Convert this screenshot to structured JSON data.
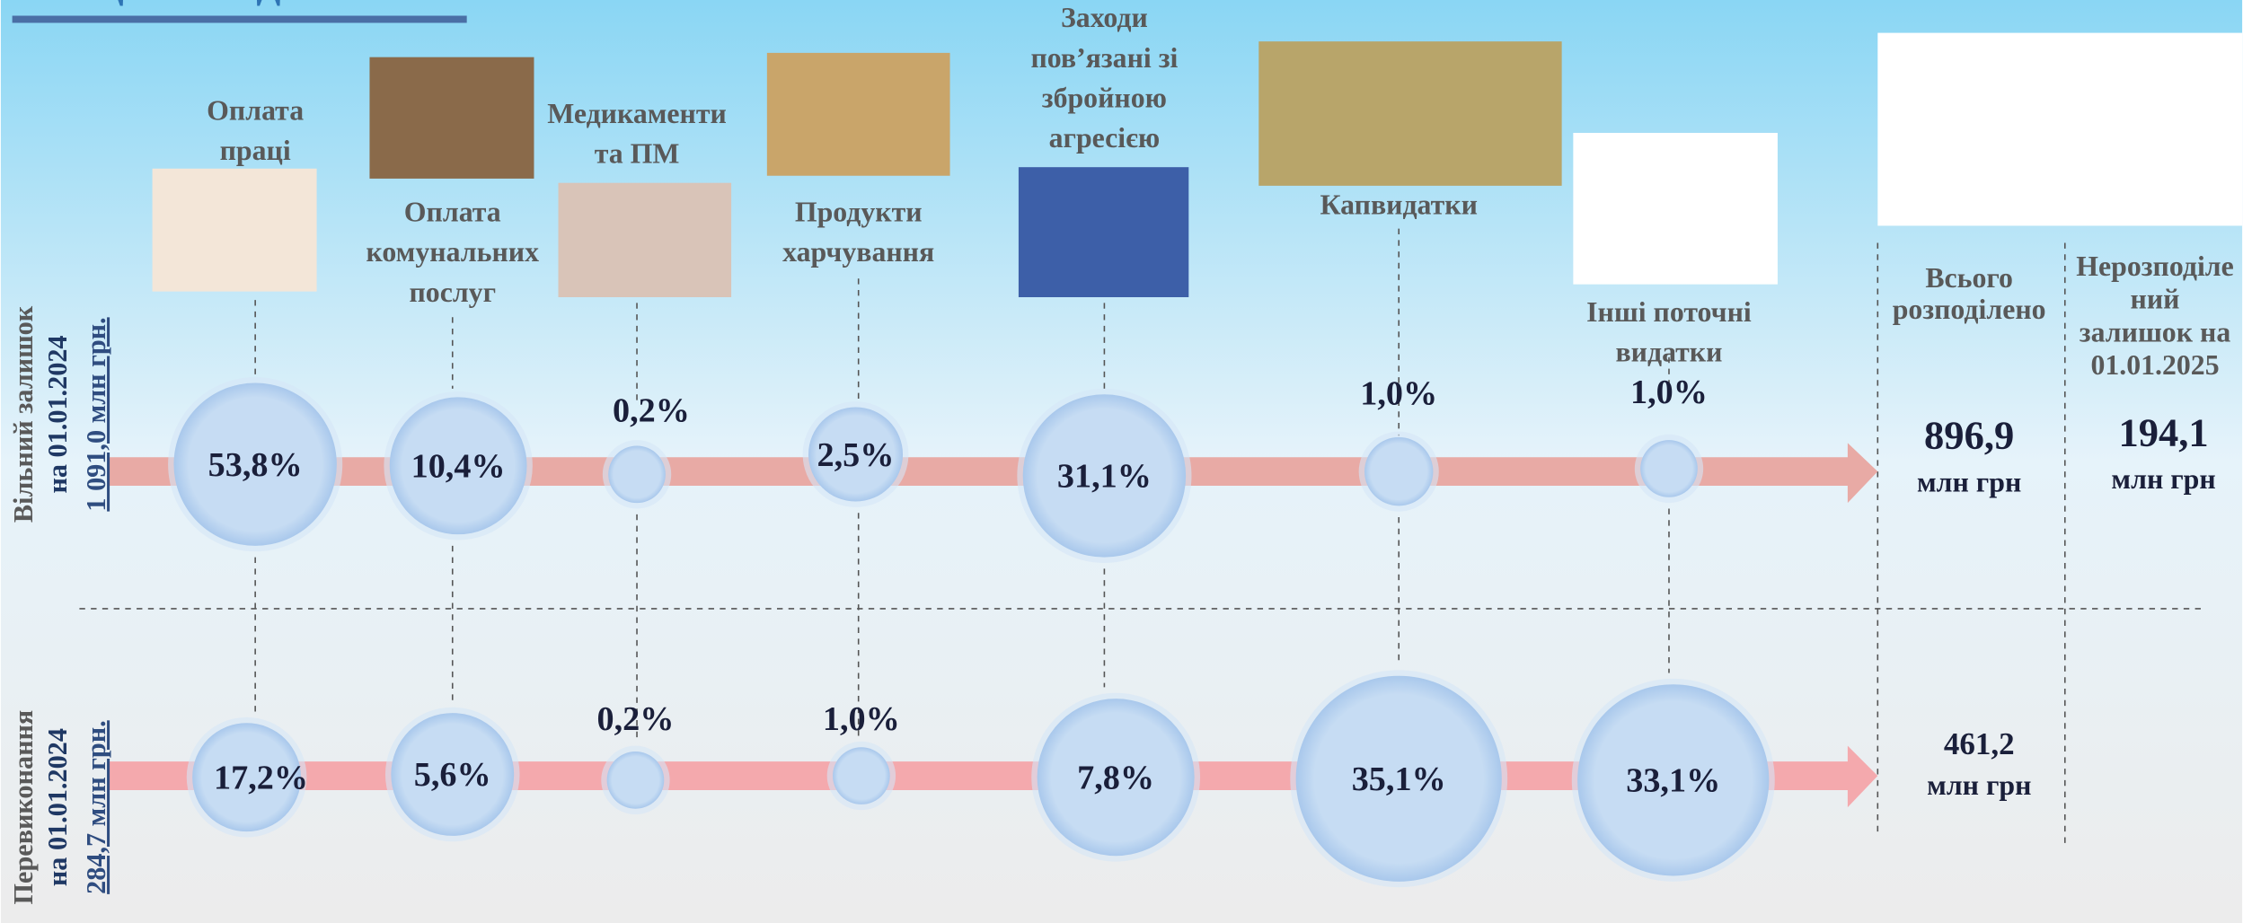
{
  "header": {
    "title": "Місцеві бюджети"
  },
  "rows": [
    {
      "label": "Вільний залишок",
      "date": "на 01.01.2024",
      "amount": "1 091,0 млн грн."
    },
    {
      "label": "Перевиконання",
      "date": "на 01.01.2024",
      "amount": "284,7 млн грн."
    }
  ],
  "columns": [
    {
      "label": [
        "Оплата",
        "праці"
      ],
      "shares": [
        "53,8%",
        "17,2%"
      ]
    },
    {
      "label": [
        "Оплата",
        "комунальних",
        "послуг"
      ],
      "shares": [
        "10,4%",
        "5,6%"
      ]
    },
    {
      "label": [
        "Медикаменти",
        "та ПМ"
      ],
      "shares": [
        "0,2%",
        "0,2%"
      ]
    },
    {
      "label": [
        "Продукти",
        "харчування"
      ],
      "shares": [
        "2,5%",
        "1,0%"
      ]
    },
    {
      "label": [
        "Заходи",
        "пов’язані зі",
        "збройною",
        "агресією"
      ],
      "shares": [
        "31,1%",
        "7,8%"
      ]
    },
    {
      "label": [
        "Капвидатки"
      ],
      "shares": [
        "1,0%",
        "35,1%"
      ]
    },
    {
      "label": [
        "Інші поточні",
        "видатки"
      ],
      "shares": [
        "1,0%",
        "33,1%"
      ]
    }
  ],
  "totals": {
    "distributed": {
      "label": [
        "Всього",
        "розподілено"
      ],
      "row1": {
        "value": "896,9",
        "unit": "млн грн"
      },
      "row2": {
        "value": "461,2",
        "unit": "млн грн"
      }
    },
    "undistributed": {
      "label": [
        "Нерозподіле",
        "ний",
        "залишок на",
        "01.01.2025"
      ],
      "row1": {
        "value": "194,1",
        "unit": "млн грн"
      }
    }
  }
}
